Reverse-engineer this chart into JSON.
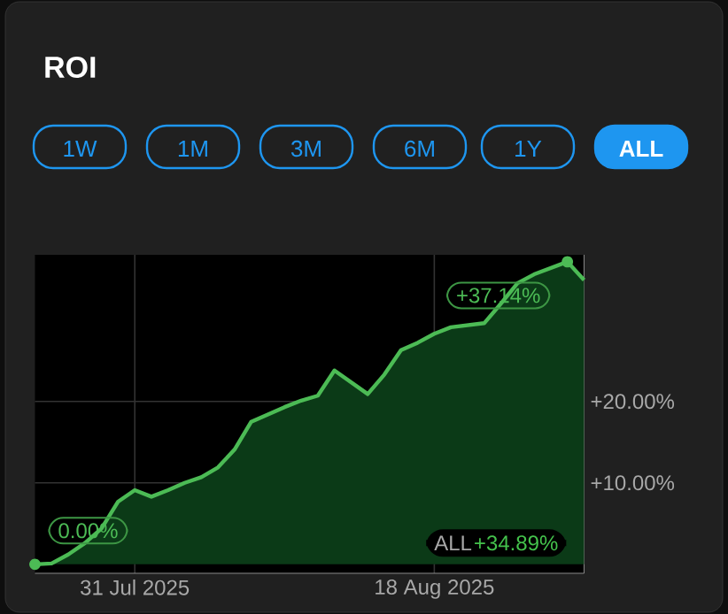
{
  "chart_data": {
    "type": "area",
    "title": "ROI",
    "x": [
      "2025-07-25",
      "2025-07-26",
      "2025-07-27",
      "2025-07-28",
      "2025-07-29",
      "2025-07-30",
      "2025-07-31",
      "2025-08-01",
      "2025-08-02",
      "2025-08-03",
      "2025-08-04",
      "2025-08-05",
      "2025-08-06",
      "2025-08-07",
      "2025-08-08",
      "2025-08-09",
      "2025-08-10",
      "2025-08-11",
      "2025-08-12",
      "2025-08-14",
      "2025-08-15",
      "2025-08-16",
      "2025-08-17",
      "2025-08-18",
      "2025-08-19",
      "2025-08-21",
      "2025-08-22",
      "2025-08-23",
      "2025-08-24",
      "2025-08-26",
      "2025-08-27"
    ],
    "series": [
      {
        "color": "#4cbb55",
        "values": [
          0.0,
          0.1,
          1.2,
          2.6,
          4.4,
          7.7,
          9.1,
          8.3,
          9.1,
          10.0,
          10.7,
          11.9,
          14.1,
          17.5,
          18.4,
          19.3,
          20.1,
          20.7,
          23.8,
          20.9,
          23.3,
          26.3,
          27.2,
          28.3,
          29.1,
          29.6,
          32.0,
          34.5,
          35.6,
          37.14,
          34.89
        ]
      }
    ],
    "xlim": [
      "2025-07-25",
      "2025-08-27"
    ],
    "ylim": [
      -1.1,
      38.0
    ],
    "xticks": [
      {
        "value": "2025-07-31",
        "label": "31 Jul 2025"
      },
      {
        "value": "2025-08-18",
        "label": "18 Aug 2025"
      }
    ],
    "yticks": [
      {
        "value": 10,
        "label": "+10.00%"
      },
      {
        "value": 20,
        "label": "+20.00%"
      }
    ],
    "grid": true,
    "annotations": [
      "1W",
      "1M",
      "3M",
      "6M",
      "1Y",
      "ALL",
      "ALL",
      "+34.89%",
      {
        "text": "0.00%",
        "x": "2025-07-25",
        "y": 0.0
      },
      {
        "text": "+37.14%",
        "x": "2025-08-26",
        "y": 37.14
      }
    ]
  }
}
